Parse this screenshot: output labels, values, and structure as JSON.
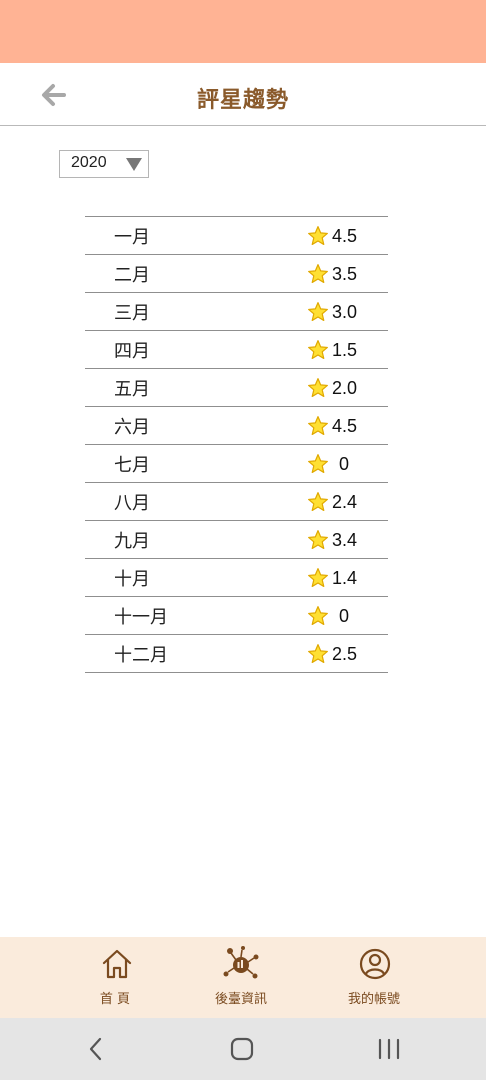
{
  "colors": {
    "status_bar": "#ffb394",
    "title": "#8a5a2b",
    "bottom_nav_bg": "#faebdc",
    "nav_icon": "#7a4a1f",
    "star_fill": "#ffe033",
    "star_stroke": "#e0a800"
  },
  "header": {
    "back_icon": "back-arrow-icon",
    "title": "評星趨勢"
  },
  "year_select": {
    "value": "2020",
    "icon": "dropdown-triangle-icon"
  },
  "ratings": [
    {
      "month": "一月",
      "value": "4.5"
    },
    {
      "month": "二月",
      "value": "3.5"
    },
    {
      "month": "三月",
      "value": "3.0"
    },
    {
      "month": "四月",
      "value": "1.5"
    },
    {
      "month": "五月",
      "value": "2.0"
    },
    {
      "month": "六月",
      "value": "4.5"
    },
    {
      "month": "七月",
      "value": "0"
    },
    {
      "month": "八月",
      "value": "2.4"
    },
    {
      "month": "九月",
      "value": "3.4"
    },
    {
      "month": "十月",
      "value": "1.4"
    },
    {
      "month": "十一月",
      "value": "0"
    },
    {
      "month": "十二月",
      "value": "2.5"
    }
  ],
  "bottom_nav": {
    "home": {
      "label": "首 頁",
      "icon": "home-icon"
    },
    "backend": {
      "label": "後臺資訊",
      "icon": "analytics-icon"
    },
    "account": {
      "label": "我的帳號",
      "icon": "user-icon"
    }
  },
  "system_nav": {
    "back": "system-back-icon",
    "home": "system-home-icon",
    "recent": "system-recent-apps-icon"
  }
}
